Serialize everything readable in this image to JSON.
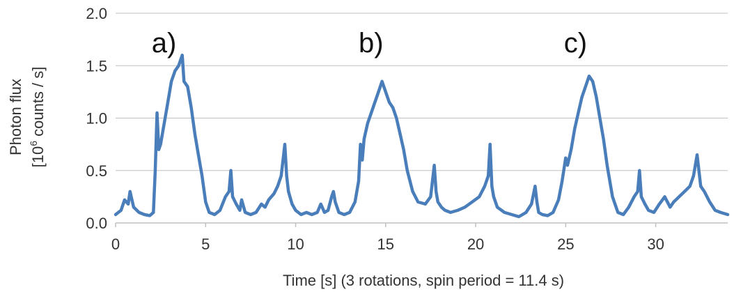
{
  "chart_data": {
    "type": "line",
    "title": "",
    "xlabel": "Time [s] (3 rotations, spin period = 11.4 s)",
    "ylabel_line1": "Photon flux",
    "ylabel_line2_prefix": "[10",
    "ylabel_line2_sup": "6",
    "ylabel_line2_suffix": " counts / s]",
    "xlim": [
      0,
      34
    ],
    "ylim": [
      0,
      2.0
    ],
    "x_ticks": [
      "0",
      "5",
      "10",
      "15",
      "20",
      "25",
      "30"
    ],
    "y_ticks": [
      "0.0",
      "0.5",
      "1.0",
      "1.5",
      "2.0"
    ],
    "grid": "horizontal",
    "legend": "none",
    "panel_labels": [
      {
        "text": "a)",
        "x": 2.0,
        "y": 1.72
      },
      {
        "text": "b)",
        "x": 13.5,
        "y": 1.72
      },
      {
        "text": "c)",
        "x": 24.9,
        "y": 1.72
      }
    ],
    "series": [
      {
        "color": "#4a7ebb",
        "x": [
          0.0,
          0.3,
          0.5,
          0.7,
          0.8,
          1.0,
          1.3,
          1.6,
          1.9,
          2.1,
          2.2,
          2.3,
          2.4,
          2.5,
          2.7,
          2.9,
          3.1,
          3.3,
          3.5,
          3.7,
          3.8,
          4.0,
          4.2,
          4.4,
          4.6,
          4.8,
          5.0,
          5.2,
          5.5,
          5.8,
          6.1,
          6.3,
          6.4,
          6.5,
          6.7,
          6.9,
          7.0,
          7.2,
          7.5,
          7.8,
          8.1,
          8.3,
          8.5,
          8.8,
          9.0,
          9.2,
          9.4,
          9.5,
          9.6,
          9.8,
          10.0,
          10.3,
          10.6,
          10.9,
          11.2,
          11.4,
          11.6,
          11.8,
          12.0,
          12.1,
          12.2,
          12.4,
          12.7,
          13.0,
          13.3,
          13.5,
          13.6,
          13.7,
          13.8,
          14.0,
          14.2,
          14.4,
          14.6,
          14.8,
          15.0,
          15.2,
          15.4,
          15.6,
          15.8,
          16.0,
          16.2,
          16.5,
          16.8,
          17.2,
          17.5,
          17.7,
          17.8,
          17.9,
          18.1,
          18.3,
          18.6,
          19.0,
          19.4,
          19.8,
          20.2,
          20.5,
          20.7,
          20.8,
          20.9,
          21.0,
          21.2,
          21.6,
          22.0,
          22.4,
          22.8,
          23.1,
          23.3,
          23.4,
          23.5,
          23.7,
          24.0,
          24.3,
          24.6,
          24.8,
          25.0,
          25.1,
          25.3,
          25.5,
          25.7,
          25.9,
          26.1,
          26.3,
          26.5,
          26.7,
          26.9,
          27.1,
          27.3,
          27.6,
          27.9,
          28.2,
          28.5,
          28.8,
          29.0,
          29.1,
          29.2,
          29.4,
          29.6,
          29.9,
          30.2,
          30.5,
          30.8,
          31.0,
          31.3,
          31.6,
          31.9,
          32.1,
          32.3,
          32.4,
          32.5,
          32.7,
          33.0,
          33.3,
          33.6,
          34.0
        ],
        "y": [
          0.08,
          0.12,
          0.22,
          0.18,
          0.3,
          0.15,
          0.1,
          0.08,
          0.07,
          0.1,
          0.5,
          1.05,
          0.7,
          0.75,
          0.95,
          1.15,
          1.35,
          1.45,
          1.5,
          1.6,
          1.35,
          1.3,
          1.1,
          0.85,
          0.65,
          0.45,
          0.2,
          0.1,
          0.08,
          0.12,
          0.25,
          0.3,
          0.5,
          0.25,
          0.18,
          0.12,
          0.22,
          0.1,
          0.08,
          0.1,
          0.18,
          0.15,
          0.22,
          0.28,
          0.35,
          0.45,
          0.75,
          0.45,
          0.3,
          0.18,
          0.12,
          0.08,
          0.1,
          0.08,
          0.1,
          0.18,
          0.1,
          0.12,
          0.25,
          0.3,
          0.2,
          0.1,
          0.08,
          0.1,
          0.2,
          0.4,
          0.75,
          0.6,
          0.8,
          0.95,
          1.05,
          1.15,
          1.25,
          1.35,
          1.25,
          1.15,
          1.1,
          1.0,
          0.85,
          0.7,
          0.5,
          0.3,
          0.2,
          0.18,
          0.25,
          0.55,
          0.3,
          0.2,
          0.15,
          0.12,
          0.1,
          0.12,
          0.15,
          0.2,
          0.25,
          0.35,
          0.45,
          0.75,
          0.35,
          0.25,
          0.15,
          0.1,
          0.08,
          0.06,
          0.1,
          0.18,
          0.35,
          0.2,
          0.1,
          0.08,
          0.07,
          0.1,
          0.22,
          0.4,
          0.62,
          0.55,
          0.7,
          0.9,
          1.05,
          1.2,
          1.3,
          1.4,
          1.35,
          1.2,
          1.0,
          0.8,
          0.55,
          0.25,
          0.1,
          0.08,
          0.15,
          0.25,
          0.3,
          0.5,
          0.25,
          0.18,
          0.12,
          0.1,
          0.18,
          0.25,
          0.15,
          0.2,
          0.25,
          0.3,
          0.35,
          0.45,
          0.65,
          0.5,
          0.35,
          0.3,
          0.2,
          0.12,
          0.1,
          0.08
        ]
      }
    ]
  }
}
